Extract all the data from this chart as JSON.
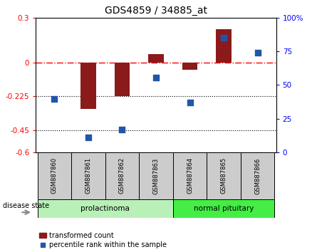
{
  "title": "GDS4859 / 34885_at",
  "samples": [
    "GSM887860",
    "GSM887861",
    "GSM887862",
    "GSM887863",
    "GSM887864",
    "GSM887865",
    "GSM887866"
  ],
  "red_bars": [
    0.0,
    -0.31,
    -0.225,
    0.055,
    -0.05,
    0.225,
    0.0
  ],
  "blue_squares_left": [
    -0.245,
    -0.5,
    -0.445,
    -0.1,
    -0.265,
    0.165,
    0.065
  ],
  "ylim_left": [
    -0.6,
    0.3
  ],
  "ylim_right": [
    0,
    100
  ],
  "yticks_left": [
    0.3,
    0.0,
    -0.225,
    -0.45,
    -0.6
  ],
  "yticks_right": [
    100,
    75,
    50,
    25,
    0
  ],
  "ytick_labels_left": [
    "0.3",
    "0",
    "-0.225",
    "-0.45",
    "-0.6"
  ],
  "ytick_labels_right": [
    "100%",
    "75",
    "50",
    "25",
    "0"
  ],
  "hlines_dotted": [
    -0.225,
    -0.45
  ],
  "hline_dashdot": 0.0,
  "disease_label": "disease state",
  "prolactinoma_label": "prolactinoma",
  "normal_pituitary_label": "normal pituitary",
  "legend_red": "transformed count",
  "legend_blue": "percentile rank within the sample",
  "red_color": "#8B1A1A",
  "blue_color": "#2255AA",
  "prolactinoma_light": "#B8F0B8",
  "prolactinoma_dark": "#44CC44",
  "normal_light": "#44EE44",
  "normal_dark": "#00AA00",
  "sample_box_color": "#CCCCCC",
  "bar_width": 0.45,
  "square_size": 40
}
